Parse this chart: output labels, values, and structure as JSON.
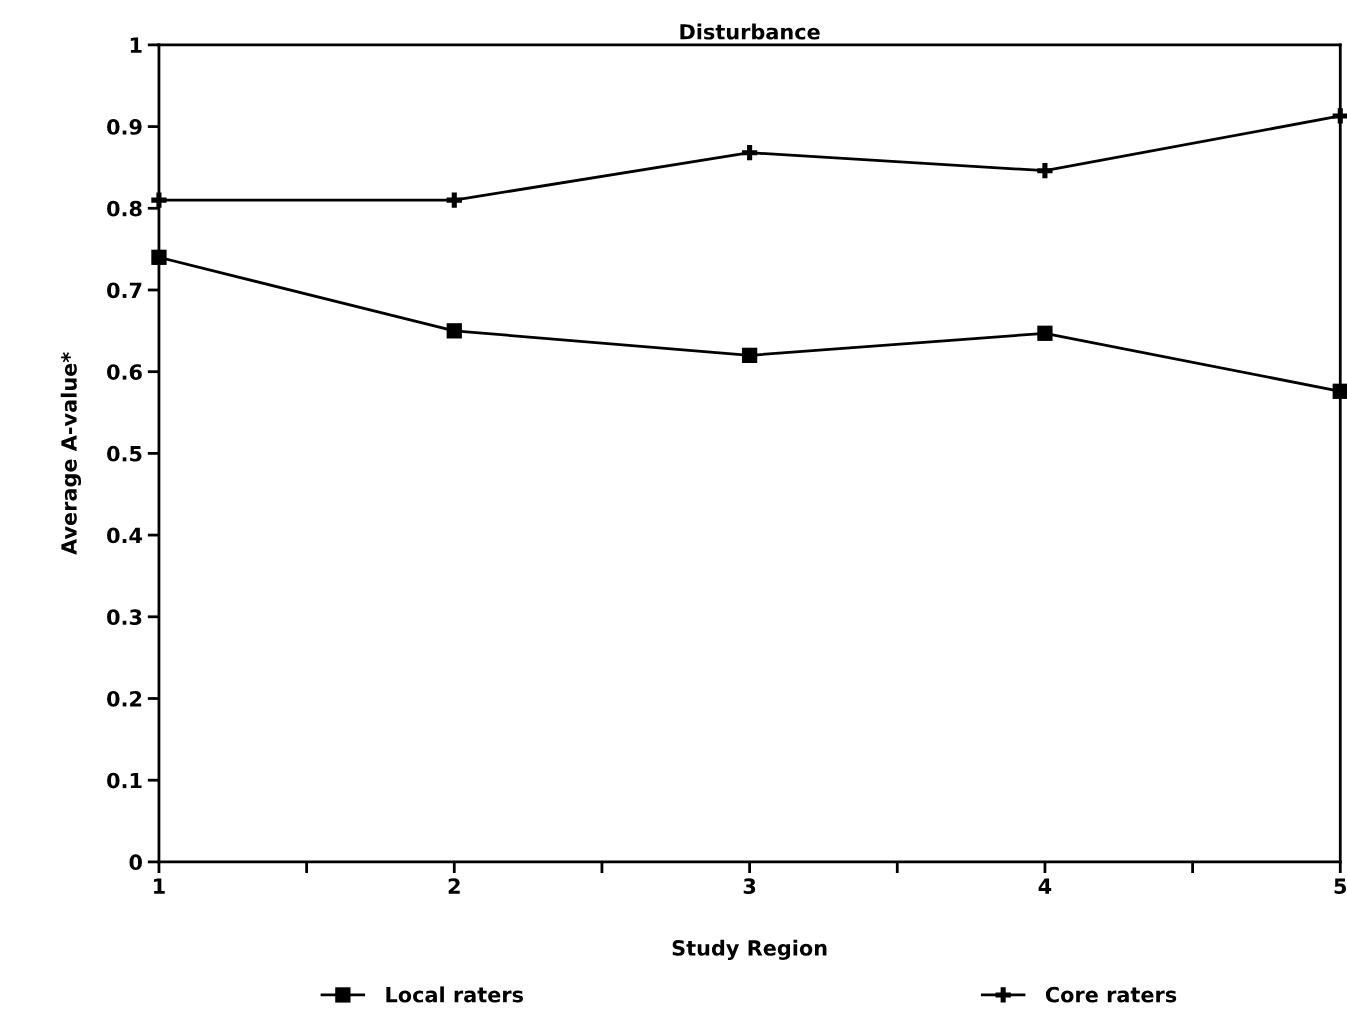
{
  "chart_data": {
    "type": "line",
    "title": "Disturbance",
    "xlabel": "Study Region",
    "ylabel": "Average A-value*",
    "x": [
      1,
      2,
      3,
      4,
      5
    ],
    "series": [
      {
        "name": "Local raters",
        "color": "#000000",
        "marker": "square",
        "values": [
          0.74,
          0.65,
          0.62,
          0.647,
          0.576
        ]
      },
      {
        "name": "Core raters",
        "color": "#000000",
        "marker": "cross",
        "values": [
          0.81,
          0.81,
          0.868,
          0.846,
          0.913
        ]
      }
    ],
    "xlim": [
      1,
      5
    ],
    "xticks": [
      1,
      {
        "value": 1.5,
        "label": null
      },
      2,
      {
        "value": 2.5,
        "label": null
      },
      3,
      {
        "value": 3.5,
        "label": null
      },
      4,
      {
        "value": 4.5,
        "label": null
      },
      5
    ],
    "ylim": [
      0,
      1
    ],
    "yticks": [
      0,
      0.1,
      0.2,
      0.3,
      0.4,
      0.5,
      0.6,
      0.7,
      0.8,
      0.9,
      1
    ],
    "grid": false,
    "legend": "bottom",
    "line_style": "solid"
  }
}
